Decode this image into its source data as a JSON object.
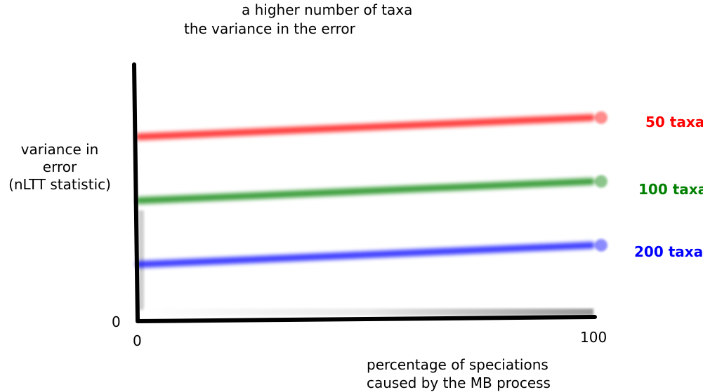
{
  "chart_data": {
    "type": "line",
    "title_lines": [
      "a higher number of taxa",
      "the variance in the error"
    ],
    "ylabel_lines": [
      "variance in",
      "error",
      "(nLTT statistic)"
    ],
    "xlabel_lines": [
      "percentage of speciations",
      "caused by the MB process"
    ],
    "x_ticks": [
      "0",
      "100"
    ],
    "y_ticks": [
      "0"
    ],
    "xlim": [
      0,
      100
    ],
    "grid": false,
    "legend_placement": "right, at end of each line",
    "series": [
      {
        "name": "50 taxa",
        "color": "#ff0000",
        "x": [
          0,
          100
        ],
        "y": [
          3,
          3.3
        ]
      },
      {
        "name": "100 taxa",
        "color": "#008000",
        "x": [
          0,
          100
        ],
        "y": [
          2,
          2.3
        ]
      },
      {
        "name": "200 taxa",
        "color": "#0000ff",
        "x": [
          0,
          100
        ],
        "y": [
          1,
          1.3
        ]
      }
    ]
  }
}
